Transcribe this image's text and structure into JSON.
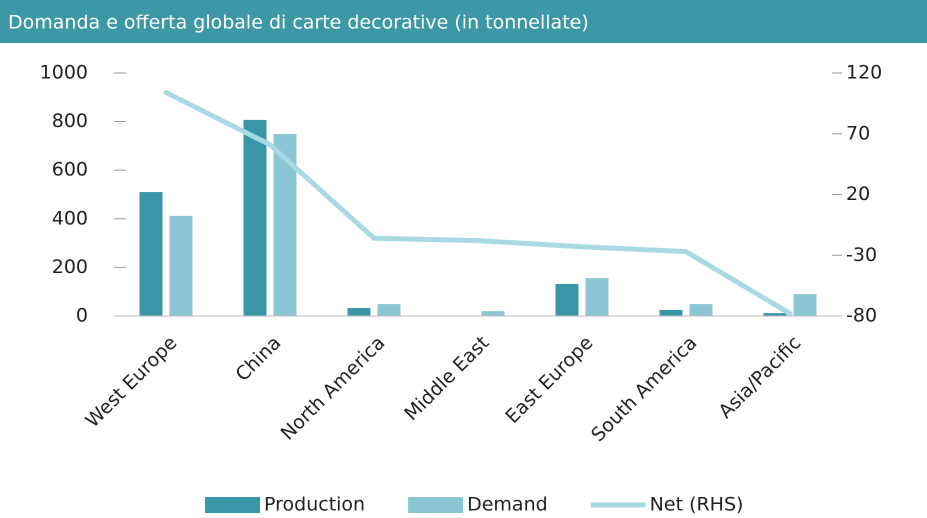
{
  "chart_data": {
    "type": "bar",
    "title": "Domanda e offerta globale di carte decorative (in tonnellate)",
    "categories": [
      "West Europe",
      "China",
      "North America",
      "Middle East",
      "East Europe",
      "South America",
      "Asia/Pacific"
    ],
    "series": [
      {
        "name": "Production",
        "type": "bar",
        "color": "#3a97a8",
        "values": [
          510,
          807,
          33,
          0,
          132,
          25,
          12
        ]
      },
      {
        "name": "Demand",
        "type": "bar",
        "color": "#8cc5d3",
        "values": [
          412,
          749,
          49,
          20,
          156,
          49,
          90
        ]
      },
      {
        "name": "Net (RHS)",
        "type": "line",
        "axis": "y2",
        "color": "#a9d9e2",
        "values": [
          104,
          61,
          -16,
          -18,
          -23,
          -27,
          -78
        ]
      }
    ],
    "ylim": [
      0,
      1000
    ],
    "yticks": [
      0,
      200,
      400,
      600,
      800,
      1000
    ],
    "y2lim": [
      -80,
      120
    ],
    "y2ticks": [
      -80,
      -30,
      20,
      70,
      120
    ],
    "legend": "bottom"
  }
}
